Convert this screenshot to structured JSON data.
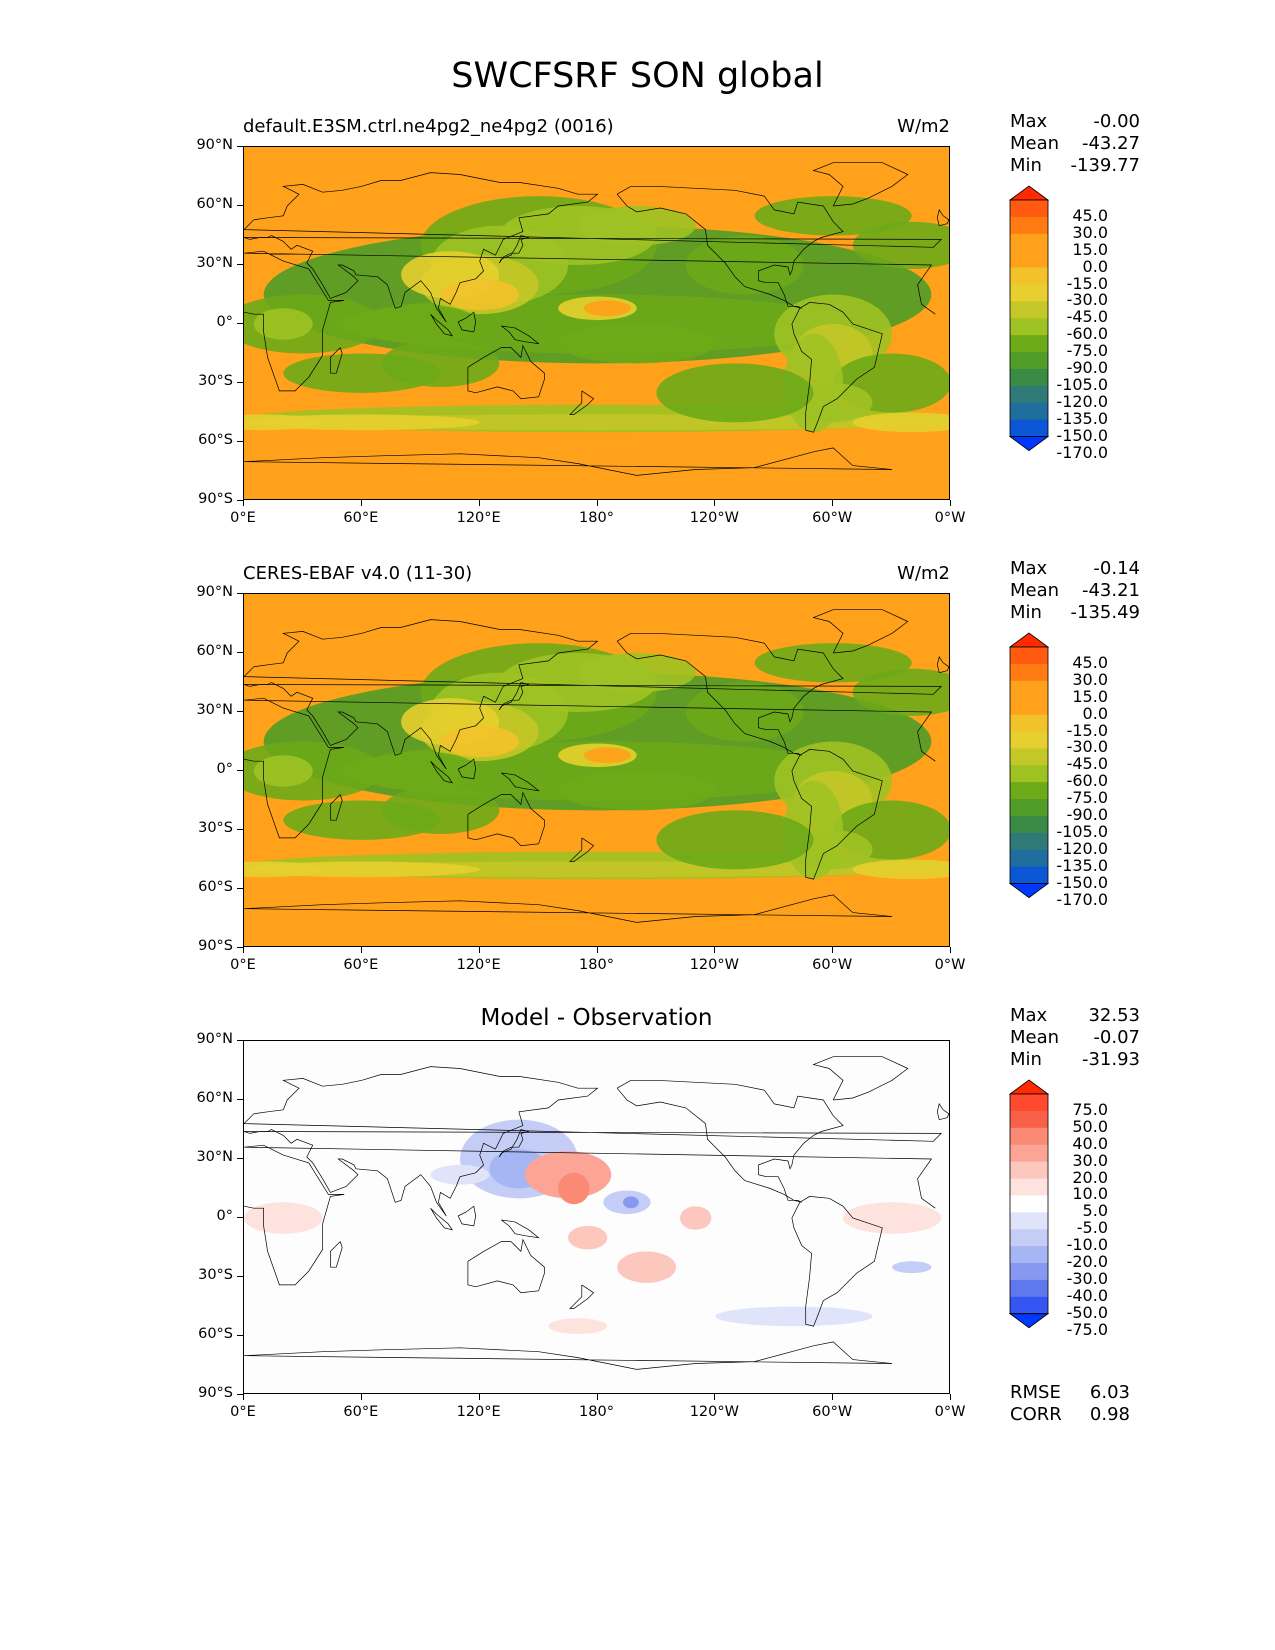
{
  "figure_title": "SWCFSRF SON global",
  "panels": [
    {
      "title_left": "default.E3SM.ctrl.ne4pg2_ne4pg2 (0016)",
      "title_center": "",
      "units": "W/m2",
      "stats": {
        "max_label": "Max",
        "max": "-0.00",
        "mean_label": "Mean",
        "mean": "-43.27",
        "min_label": "Min",
        "min": "-139.77"
      },
      "colorbar_levels": [
        "45.0",
        "30.0",
        "15.0",
        "0.0",
        "-15.0",
        "-30.0",
        "-45.0",
        "-60.0",
        "-75.0",
        "-90.0",
        "-105.0",
        "-120.0",
        "-135.0",
        "-150.0",
        "-170.0"
      ],
      "colorbar_colors": [
        "#ff2a00",
        "#ff5a10",
        "#ff7a10",
        "#ffa11a",
        "#ffa11a",
        "#f2c22a",
        "#e6cf2e",
        "#c3c727",
        "#9fc223",
        "#6daa18",
        "#4f9c27",
        "#3b8a45",
        "#2f7a76",
        "#1f6e9e",
        "#0b57d6",
        "#0038ff"
      ],
      "map_type": "field"
    },
    {
      "title_left": "CERES-EBAF v4.0 (11-30)",
      "title_center": "",
      "units": "W/m2",
      "stats": {
        "max_label": "Max",
        "max": "-0.14",
        "mean_label": "Mean",
        "mean": "-43.21",
        "min_label": "Min",
        "min": "-135.49"
      },
      "colorbar_levels": [
        "45.0",
        "30.0",
        "15.0",
        "0.0",
        "-15.0",
        "-30.0",
        "-45.0",
        "-60.0",
        "-75.0",
        "-90.0",
        "-105.0",
        "-120.0",
        "-135.0",
        "-150.0",
        "-170.0"
      ],
      "colorbar_colors": [
        "#ff2a00",
        "#ff5a10",
        "#ff7a10",
        "#ffa11a",
        "#ffa11a",
        "#f2c22a",
        "#e6cf2e",
        "#c3c727",
        "#9fc223",
        "#6daa18",
        "#4f9c27",
        "#3b8a45",
        "#2f7a76",
        "#1f6e9e",
        "#0b57d6",
        "#0038ff"
      ],
      "map_type": "field"
    },
    {
      "title_left": "",
      "title_center": "Model - Observation",
      "units": "",
      "stats": {
        "max_label": "Max",
        "max": "32.53",
        "mean_label": "Mean",
        "mean": "-0.07",
        "min_label": "Min",
        "min": "-31.93"
      },
      "colorbar_levels": [
        "75.0",
        "50.0",
        "40.0",
        "30.0",
        "20.0",
        "10.0",
        "5.0",
        "-5.0",
        "-10.0",
        "-20.0",
        "-30.0",
        "-40.0",
        "-50.0",
        "-75.0"
      ],
      "colorbar_colors": [
        "#ff2a00",
        "#ff4a30",
        "#f8604a",
        "#fb8a74",
        "#fca596",
        "#fcc7bd",
        "#fde2dd",
        "#ffffff",
        "#dfe4fb",
        "#c4cdf6",
        "#a6b5f3",
        "#8798f0",
        "#5f78ee",
        "#3556f2",
        "#0038ff"
      ],
      "map_type": "diff",
      "metrics": {
        "rmse_label": "RMSE",
        "rmse": "6.03",
        "corr_label": "CORR",
        "corr": "0.98"
      }
    }
  ],
  "lat_ticks": [
    "90°N",
    "60°N",
    "30°N",
    "0°",
    "30°S",
    "60°S",
    "90°S"
  ],
  "lon_ticks": [
    "0°E",
    "60°E",
    "120°E",
    "180°",
    "120°W",
    "60°W",
    "0°W"
  ]
}
